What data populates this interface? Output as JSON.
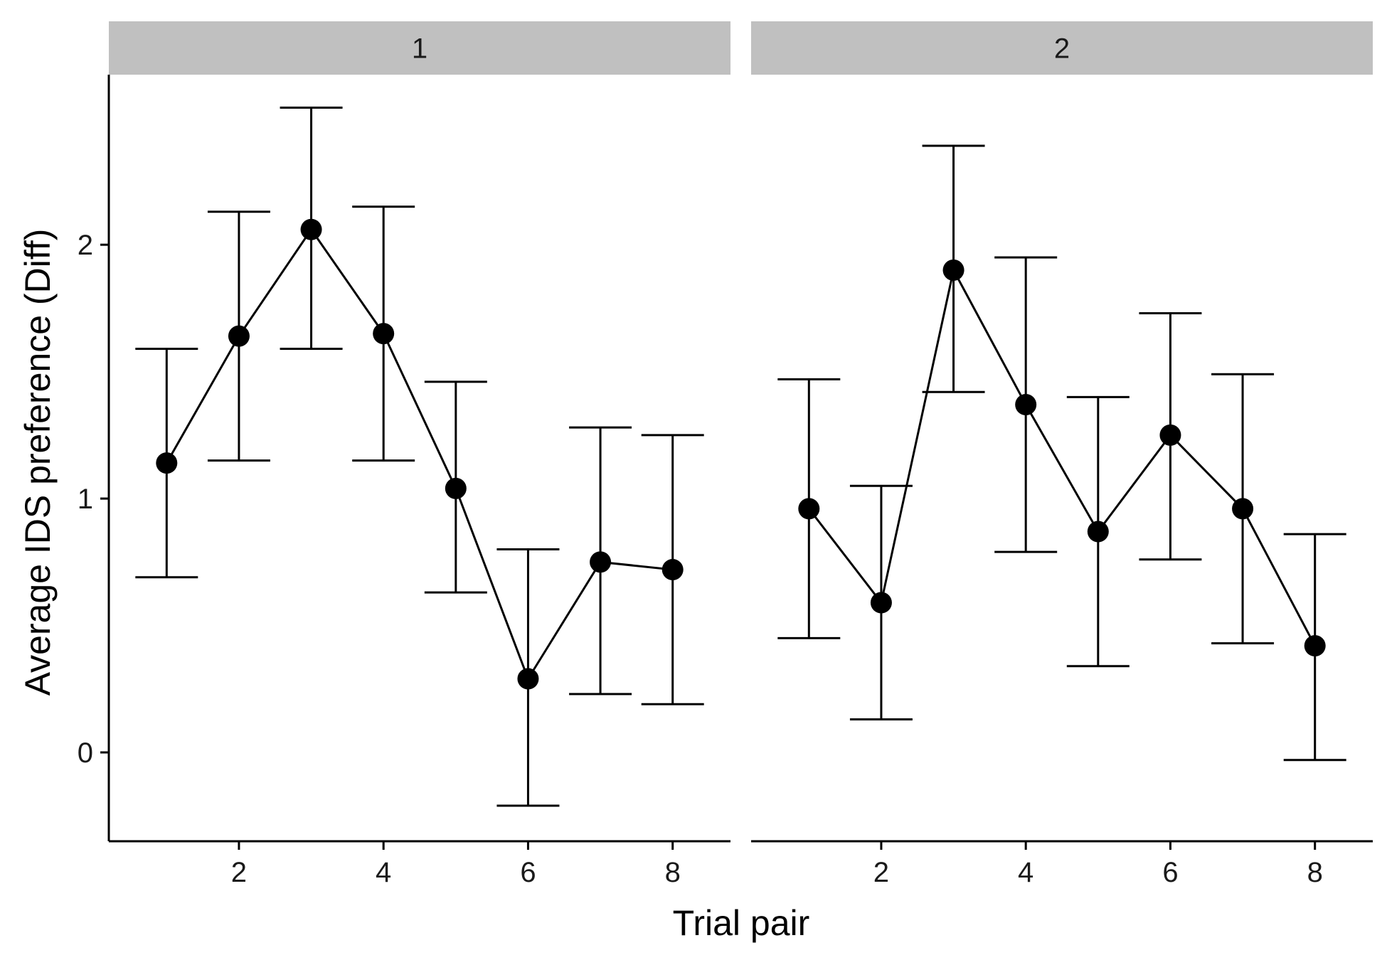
{
  "chart_data": {
    "type": "line",
    "xlabel": "Trial pair",
    "ylabel": "Average IDS preference (Diff)",
    "xlim": [
      0.2,
      8.8
    ],
    "ylim": [
      -0.35,
      2.67
    ],
    "x_ticks": [
      2,
      4,
      6,
      8
    ],
    "y_ticks": [
      0,
      1,
      2
    ],
    "grid": false,
    "error_bars": true,
    "panels": [
      {
        "strip_label": "1",
        "x": [
          1,
          2,
          3,
          4,
          5,
          6,
          7,
          8
        ],
        "y": [
          1.14,
          1.64,
          2.06,
          1.65,
          1.04,
          0.29,
          0.75,
          0.72
        ],
        "ymin": [
          0.69,
          1.15,
          1.59,
          1.15,
          0.63,
          -0.21,
          0.23,
          0.19
        ],
        "ymax": [
          1.59,
          2.13,
          2.54,
          2.15,
          1.46,
          0.8,
          1.28,
          1.25
        ]
      },
      {
        "strip_label": "2",
        "x": [
          1,
          2,
          3,
          4,
          5,
          6,
          7,
          8
        ],
        "y": [
          0.96,
          0.59,
          1.9,
          1.37,
          0.87,
          1.25,
          0.96,
          0.42
        ],
        "ymin": [
          0.45,
          0.13,
          1.42,
          0.79,
          0.34,
          0.76,
          0.43,
          -0.03
        ],
        "ymax": [
          1.47,
          1.05,
          2.39,
          1.95,
          1.4,
          1.73,
          1.49,
          0.86
        ]
      }
    ]
  }
}
